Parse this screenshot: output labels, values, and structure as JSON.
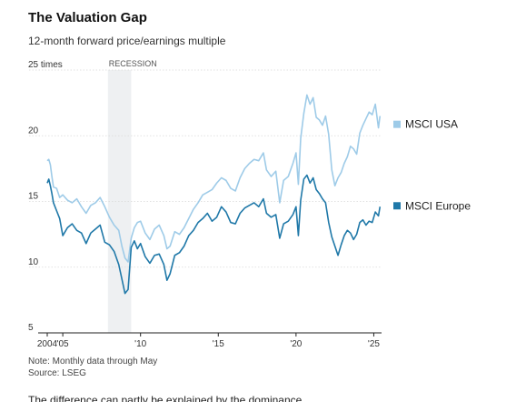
{
  "title": "The Valuation Gap",
  "subtitle": "12-month forward price/earnings multiple",
  "note": "Note: Monthly data through May",
  "source": "Source: LSEG",
  "next_text": "The difference can partly be explained by the dominance",
  "colors": {
    "usa": "#9ecbe8",
    "europe": "#1f78a8",
    "recession": "#eef0f2",
    "grid": "#d9d9d9",
    "axis": "#222222",
    "text": "#333333"
  },
  "chart_data": {
    "type": "line",
    "title": "The Valuation Gap",
    "subtitle": "12-month forward price/earnings multiple",
    "ylim": [
      5,
      25
    ],
    "xlim": [
      2004.0,
      2025.5
    ],
    "y_ticks": [
      5,
      10,
      15,
      20,
      25
    ],
    "y_tick_labels": [
      "5",
      "10",
      "15",
      "20",
      "25 times"
    ],
    "x_ticks": [
      2004,
      2005,
      2010,
      2015,
      2020,
      2025
    ],
    "x_tick_labels": [
      "2004",
      "'05",
      "'10",
      "'15",
      "'20",
      "'25"
    ],
    "grid": true,
    "legend": "right",
    "shaded_region": {
      "label": "RECESSION",
      "start": 2007.9,
      "end": 2009.4
    },
    "series": [
      {
        "name": "MSCI USA",
        "color": "#9ecbe8",
        "x": [
          2004.0,
          2004.1,
          2004.2,
          2004.3,
          2004.4,
          2004.6,
          2004.8,
          2005.0,
          2005.3,
          2005.6,
          2005.9,
          2006.2,
          2006.5,
          2006.8,
          2007.1,
          2007.4,
          2007.7,
          2008.0,
          2008.3,
          2008.6,
          2008.8,
          2009.0,
          2009.2,
          2009.4,
          2009.6,
          2009.8,
          2010.0,
          2010.3,
          2010.6,
          2010.9,
          2011.2,
          2011.5,
          2011.7,
          2011.9,
          2012.2,
          2012.5,
          2012.8,
          2013.1,
          2013.4,
          2013.7,
          2014.0,
          2014.3,
          2014.6,
          2014.9,
          2015.2,
          2015.5,
          2015.8,
          2016.1,
          2016.4,
          2016.7,
          2017.0,
          2017.3,
          2017.6,
          2017.9,
          2018.1,
          2018.4,
          2018.7,
          2018.95,
          2019.2,
          2019.5,
          2019.8,
          2020.0,
          2020.15,
          2020.3,
          2020.5,
          2020.7,
          2020.9,
          2021.1,
          2021.3,
          2021.5,
          2021.7,
          2021.9,
          2022.1,
          2022.3,
          2022.5,
          2022.7,
          2022.9,
          2023.1,
          2023.3,
          2023.5,
          2023.7,
          2023.9,
          2024.1,
          2024.3,
          2024.5,
          2024.7,
          2024.9,
          2025.1,
          2025.3,
          2025.4
        ],
        "values": [
          18.1,
          18.2,
          17.8,
          16.9,
          16.1,
          16.0,
          15.3,
          15.5,
          15.1,
          14.9,
          15.2,
          14.6,
          14.1,
          14.7,
          14.9,
          15.3,
          14.6,
          13.8,
          13.2,
          12.8,
          11.6,
          10.7,
          10.4,
          12.2,
          13.0,
          13.4,
          13.5,
          12.6,
          12.1,
          12.9,
          13.2,
          12.4,
          11.4,
          11.6,
          12.7,
          12.5,
          13.0,
          13.7,
          14.4,
          14.9,
          15.5,
          15.7,
          15.9,
          16.4,
          16.8,
          16.6,
          16.0,
          15.8,
          16.8,
          17.5,
          17.9,
          18.2,
          18.1,
          18.7,
          17.4,
          16.9,
          17.3,
          14.9,
          16.6,
          16.9,
          17.9,
          18.7,
          16.3,
          19.8,
          21.7,
          23.1,
          22.4,
          22.9,
          21.4,
          21.2,
          20.8,
          21.5,
          20.1,
          17.4,
          16.2,
          16.8,
          17.2,
          17.9,
          18.4,
          19.2,
          19.0,
          18.6,
          20.2,
          20.8,
          21.3,
          21.8,
          21.6,
          22.4,
          20.6,
          21.5
        ]
      },
      {
        "name": "MSCI Europe",
        "color": "#1f78a8",
        "x": [
          2004.0,
          2004.1,
          2004.2,
          2004.3,
          2004.4,
          2004.6,
          2004.8,
          2005.0,
          2005.3,
          2005.6,
          2005.9,
          2006.2,
          2006.5,
          2006.8,
          2007.1,
          2007.4,
          2007.7,
          2008.0,
          2008.3,
          2008.6,
          2008.8,
          2009.0,
          2009.2,
          2009.4,
          2009.6,
          2009.8,
          2010.0,
          2010.3,
          2010.6,
          2010.9,
          2011.2,
          2011.5,
          2011.7,
          2011.9,
          2012.2,
          2012.5,
          2012.8,
          2013.1,
          2013.4,
          2013.7,
          2014.0,
          2014.3,
          2014.6,
          2014.9,
          2015.2,
          2015.5,
          2015.8,
          2016.1,
          2016.4,
          2016.7,
          2017.0,
          2017.3,
          2017.6,
          2017.9,
          2018.1,
          2018.4,
          2018.7,
          2018.95,
          2019.2,
          2019.5,
          2019.8,
          2020.0,
          2020.15,
          2020.3,
          2020.5,
          2020.7,
          2020.9,
          2021.1,
          2021.3,
          2021.5,
          2021.7,
          2021.9,
          2022.1,
          2022.3,
          2022.5,
          2022.7,
          2022.9,
          2023.1,
          2023.3,
          2023.5,
          2023.7,
          2023.9,
          2024.1,
          2024.3,
          2024.5,
          2024.7,
          2024.9,
          2025.1,
          2025.3,
          2025.4
        ],
        "values": [
          16.4,
          16.7,
          16.2,
          15.6,
          14.9,
          14.3,
          13.7,
          12.4,
          13.0,
          13.3,
          12.8,
          12.6,
          11.8,
          12.6,
          12.9,
          13.2,
          11.9,
          11.7,
          11.2,
          10.2,
          9.1,
          8.0,
          8.3,
          11.5,
          12.0,
          11.4,
          11.8,
          10.8,
          10.3,
          10.9,
          11.0,
          10.2,
          9.0,
          9.5,
          10.9,
          11.1,
          11.6,
          12.4,
          12.8,
          13.4,
          13.7,
          14.1,
          13.5,
          13.8,
          14.6,
          14.2,
          13.4,
          13.3,
          14.1,
          14.5,
          14.7,
          14.9,
          14.6,
          15.2,
          14.1,
          13.8,
          14.0,
          12.2,
          13.3,
          13.5,
          14.0,
          14.6,
          12.4,
          15.1,
          16.7,
          17.0,
          16.4,
          16.8,
          15.9,
          15.6,
          15.2,
          14.9,
          13.4,
          12.3,
          11.6,
          10.9,
          11.7,
          12.4,
          12.8,
          12.6,
          12.1,
          12.5,
          13.4,
          13.6,
          13.2,
          13.5,
          13.4,
          14.2,
          13.9,
          14.6
        ]
      }
    ]
  }
}
